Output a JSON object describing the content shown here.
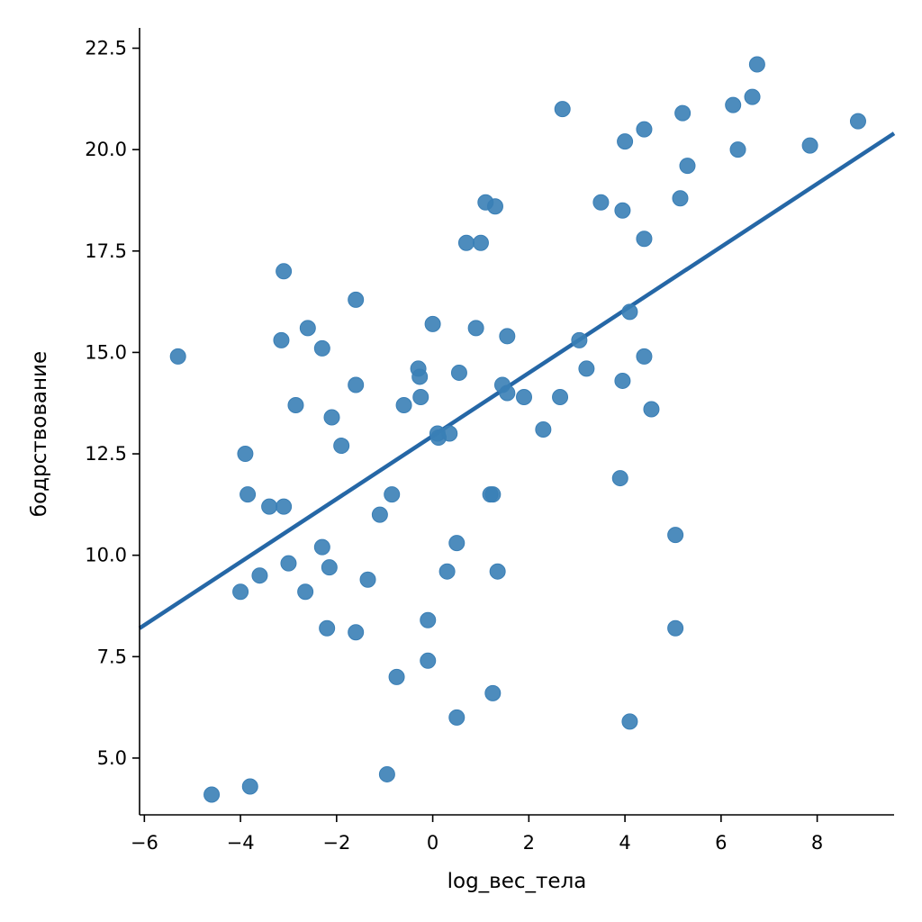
{
  "chart_data": {
    "type": "scatter",
    "title": "",
    "xlabel": "log_вес_тела",
    "ylabel": "бодрствование",
    "xlim": [
      -6.1,
      9.6
    ],
    "ylim": [
      3.6,
      23.0
    ],
    "x_ticks": [
      -6,
      -4,
      -2,
      0,
      2,
      4,
      6,
      8
    ],
    "x_tick_labels": [
      "−6",
      "−4",
      "−2",
      "0",
      "2",
      "4",
      "6",
      "8"
    ],
    "y_ticks": [
      5.0,
      7.5,
      10.0,
      12.5,
      15.0,
      17.5,
      20.0,
      22.5
    ],
    "y_tick_labels": [
      "5.0",
      "7.5",
      "10.0",
      "12.5",
      "15.0",
      "17.5",
      "20.0",
      "22.5"
    ],
    "grid": false,
    "point_color": "#3a7fb6",
    "line_color": "#2567a6",
    "points": [
      {
        "x": -5.3,
        "y": 14.9
      },
      {
        "x": -4.6,
        "y": 4.1
      },
      {
        "x": -3.8,
        "y": 4.3
      },
      {
        "x": -3.9,
        "y": 12.5
      },
      {
        "x": -3.85,
        "y": 11.5
      },
      {
        "x": -4.0,
        "y": 9.1
      },
      {
        "x": -3.6,
        "y": 9.5
      },
      {
        "x": -3.4,
        "y": 11.2
      },
      {
        "x": -3.1,
        "y": 11.2
      },
      {
        "x": -3.1,
        "y": 17.0
      },
      {
        "x": -3.15,
        "y": 15.3
      },
      {
        "x": -2.6,
        "y": 15.6
      },
      {
        "x": -2.3,
        "y": 15.1
      },
      {
        "x": -2.85,
        "y": 13.7
      },
      {
        "x": -3.0,
        "y": 9.8
      },
      {
        "x": -2.65,
        "y": 9.1
      },
      {
        "x": -2.3,
        "y": 10.2
      },
      {
        "x": -2.15,
        "y": 9.7
      },
      {
        "x": -2.1,
        "y": 13.4
      },
      {
        "x": -1.9,
        "y": 12.7
      },
      {
        "x": -1.6,
        "y": 16.3
      },
      {
        "x": -1.6,
        "y": 14.2
      },
      {
        "x": -2.2,
        "y": 8.2
      },
      {
        "x": -1.6,
        "y": 8.1
      },
      {
        "x": -1.35,
        "y": 9.4
      },
      {
        "x": -1.1,
        "y": 11.0
      },
      {
        "x": -0.85,
        "y": 11.5
      },
      {
        "x": -0.6,
        "y": 13.7
      },
      {
        "x": -0.75,
        "y": 7.0
      },
      {
        "x": -0.95,
        "y": 4.6
      },
      {
        "x": -0.3,
        "y": 14.6
      },
      {
        "x": -0.27,
        "y": 14.4
      },
      {
        "x": -0.25,
        "y": 13.9
      },
      {
        "x": 0.0,
        "y": 15.7
      },
      {
        "x": 0.1,
        "y": 13.0
      },
      {
        "x": 0.12,
        "y": 12.9
      },
      {
        "x": 0.35,
        "y": 13.0
      },
      {
        "x": -0.1,
        "y": 8.4
      },
      {
        "x": -0.1,
        "y": 7.4
      },
      {
        "x": 0.3,
        "y": 9.6
      },
      {
        "x": 0.5,
        "y": 10.3
      },
      {
        "x": 0.55,
        "y": 14.5
      },
      {
        "x": 0.5,
        "y": 6.0
      },
      {
        "x": 0.7,
        "y": 17.7
      },
      {
        "x": 1.0,
        "y": 17.7
      },
      {
        "x": 0.9,
        "y": 15.6
      },
      {
        "x": 1.1,
        "y": 18.7
      },
      {
        "x": 1.3,
        "y": 18.6
      },
      {
        "x": 1.2,
        "y": 11.5
      },
      {
        "x": 1.25,
        "y": 11.5
      },
      {
        "x": 1.35,
        "y": 9.6
      },
      {
        "x": 1.25,
        "y": 6.6
      },
      {
        "x": 1.45,
        "y": 14.2
      },
      {
        "x": 1.55,
        "y": 14.0
      },
      {
        "x": 1.55,
        "y": 15.4
      },
      {
        "x": 1.9,
        "y": 13.9
      },
      {
        "x": 2.3,
        "y": 13.1
      },
      {
        "x": 2.65,
        "y": 13.9
      },
      {
        "x": 2.7,
        "y": 21.0
      },
      {
        "x": 3.05,
        "y": 15.3
      },
      {
        "x": 3.2,
        "y": 14.6
      },
      {
        "x": 3.5,
        "y": 18.7
      },
      {
        "x": 3.9,
        "y": 11.9
      },
      {
        "x": 3.95,
        "y": 18.5
      },
      {
        "x": 3.95,
        "y": 14.3
      },
      {
        "x": 4.0,
        "y": 20.2
      },
      {
        "x": 4.1,
        "y": 16.0
      },
      {
        "x": 4.1,
        "y": 5.9
      },
      {
        "x": 4.4,
        "y": 20.5
      },
      {
        "x": 4.4,
        "y": 17.8
      },
      {
        "x": 4.4,
        "y": 14.9
      },
      {
        "x": 4.55,
        "y": 13.6
      },
      {
        "x": 5.05,
        "y": 10.5
      },
      {
        "x": 5.05,
        "y": 8.2
      },
      {
        "x": 5.15,
        "y": 18.8
      },
      {
        "x": 5.2,
        "y": 20.9
      },
      {
        "x": 5.3,
        "y": 19.6
      },
      {
        "x": 6.25,
        "y": 21.1
      },
      {
        "x": 6.35,
        "y": 20.0
      },
      {
        "x": 6.65,
        "y": 21.3
      },
      {
        "x": 6.75,
        "y": 22.1
      },
      {
        "x": 7.85,
        "y": 20.1
      },
      {
        "x": 8.85,
        "y": 20.7
      }
    ],
    "regression_line": {
      "x": [
        -6.1,
        9.6
      ],
      "y": [
        8.2,
        20.4
      ]
    }
  }
}
